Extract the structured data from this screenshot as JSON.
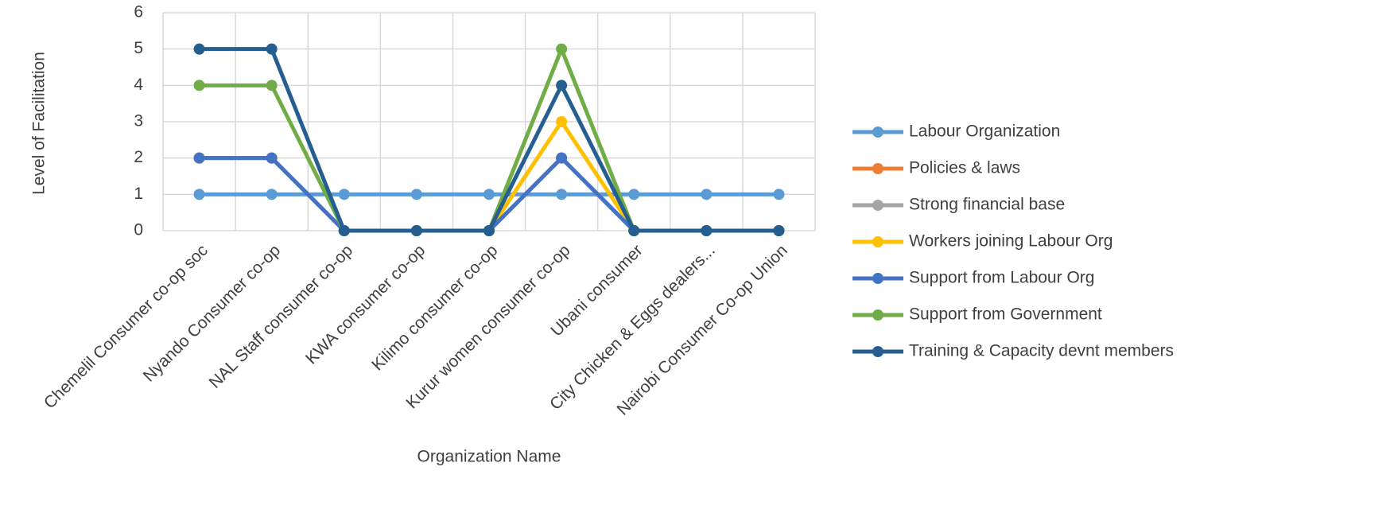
{
  "chart_data": {
    "type": "line",
    "x_label": "Organization Name",
    "y_label": "Level of Facilitation",
    "categories": [
      "Chemelil Consumer co-op soc",
      "Nyando Consumer co-op",
      "NAL Staff consumer co-op",
      "KWA consumer co-op",
      "Kilimo consumer co-op",
      "Kurur women consumer co-op",
      "Ubani consumer",
      "City Chicken & Eggs dealers...",
      "Nairobi Consumer Co-op Union"
    ],
    "series": [
      {
        "name": "Labour Organization",
        "color": "#5b9bd5",
        "values": [
          1,
          1,
          1,
          1,
          1,
          1,
          1,
          1,
          1
        ]
      },
      {
        "name": "Policies & laws",
        "color": "#ed7d31",
        "values": [
          2,
          2,
          0,
          0,
          0,
          2,
          0,
          0,
          0
        ]
      },
      {
        "name": "Strong financial base",
        "color": "#a5a5a5",
        "values": [
          2,
          2,
          0,
          0,
          0,
          2,
          0,
          0,
          0
        ]
      },
      {
        "name": "Workers joining Labour Org",
        "color": "#ffc000",
        "values": [
          2,
          2,
          0,
          0,
          0,
          3,
          0,
          0,
          0
        ]
      },
      {
        "name": "Support from Labour Org",
        "color": "#4472c4",
        "values": [
          2,
          2,
          0,
          0,
          0,
          2,
          0,
          0,
          0
        ]
      },
      {
        "name": "Support from Government",
        "color": "#70ad47",
        "values": [
          4,
          4,
          0,
          0,
          0,
          5,
          0,
          0,
          0
        ]
      },
      {
        "name": "Training & Capacity devnt members",
        "color": "#255e91",
        "values": [
          5,
          5,
          0,
          0,
          0,
          4,
          0,
          0,
          0
        ]
      }
    ],
    "ylim": [
      0,
      6
    ],
    "yticks": [
      0,
      1,
      2,
      3,
      4,
      5,
      6
    ],
    "grid": true,
    "legend": "right"
  }
}
